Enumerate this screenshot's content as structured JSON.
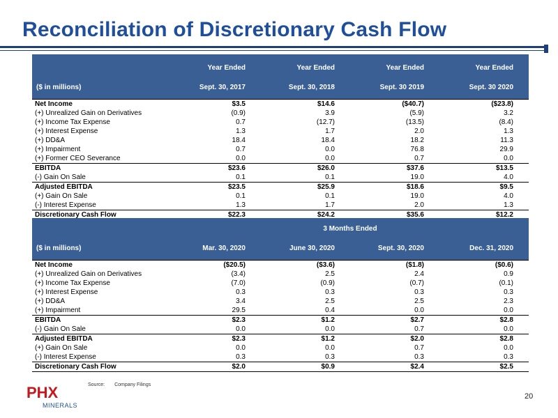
{
  "title": "Reconciliation of Discretionary Cash Flow",
  "table1": {
    "header_top": [
      "",
      "Year Ended",
      "Year Ended",
      "Year Ended",
      "Year Ended"
    ],
    "header_bottom": [
      "($ in millions)",
      "Sept. 30, 2017",
      "Sept. 30, 2018",
      "Sept. 30 2019",
      "Sept. 30 2020"
    ],
    "rows": [
      {
        "label": "Net Income",
        "values": [
          "$3.5",
          "$14.6",
          "($40.7)",
          "($23.8)"
        ],
        "bold": true
      },
      {
        "label": "(+) Unrealized Gain on Derivatives",
        "values": [
          "(0.9)",
          "3.9",
          "(5.9)",
          "3.2"
        ]
      },
      {
        "label": "(+) Income Tax Expense",
        "values": [
          "0.7",
          "(12.7)",
          "(13.5)",
          "(8.4)"
        ]
      },
      {
        "label": "(+) Interest Expense",
        "values": [
          "1.3",
          "1.7",
          "2.0",
          "1.3"
        ]
      },
      {
        "label": "(+) DD&A",
        "values": [
          "18.4",
          "18.4",
          "18.2",
          "11.3"
        ]
      },
      {
        "label": "(+) Impairment",
        "values": [
          "0.7",
          "0.0",
          "76.8",
          "29.9"
        ]
      },
      {
        "label": "(+) Former CEO Severance",
        "values": [
          "0.0",
          "0.0",
          "0.7",
          "0.0"
        ]
      },
      {
        "label": "EBITDA",
        "values": [
          "$23.6",
          "$26.0",
          "$37.6",
          "$13.5"
        ],
        "bold": true
      },
      {
        "label": "(-) Gain On Sale",
        "values": [
          "0.1",
          "0.1",
          "19.0",
          "4.0"
        ]
      },
      {
        "label": "Adjusted EBITDA",
        "values": [
          "$23.5",
          "$25.9",
          "$18.6",
          "$9.5"
        ],
        "bold": true
      },
      {
        "label": "(+) Gain On Sale",
        "values": [
          "0.1",
          "0.1",
          "19.0",
          "4.0"
        ]
      },
      {
        "label": "(-) Interest Expense",
        "values": [
          "1.3",
          "1.7",
          "2.0",
          "1.3"
        ]
      },
      {
        "label": "Discretionary Cash Flow",
        "values": [
          "$22.3",
          "$24.2",
          "$35.6",
          "$12.2"
        ],
        "bold": true
      }
    ]
  },
  "table2": {
    "header_top": "3 Months Ended",
    "header_bottom": [
      "($ in millions)",
      "Mar. 30, 2020",
      "June 30, 2020",
      "Sept. 30, 2020",
      "Dec. 31, 2020"
    ],
    "rows": [
      {
        "label": "Net Income",
        "values": [
          "($20.5)",
          "($3.6)",
          "($1.8)",
          "($0.6)"
        ],
        "bold": true
      },
      {
        "label": "(+) Unrealized Gain on Derivatives",
        "values": [
          "(3.4)",
          "2.5",
          "2.4",
          "0.9"
        ]
      },
      {
        "label": "(+) Income Tax Expense",
        "values": [
          "(7.0)",
          "(0.9)",
          "(0.7)",
          "(0.1)"
        ]
      },
      {
        "label": "(+) Interest Expense",
        "values": [
          "0.3",
          "0.3",
          "0.3",
          "0.3"
        ]
      },
      {
        "label": "(+) DD&A",
        "values": [
          "3.4",
          "2.5",
          "2.5",
          "2.3"
        ]
      },
      {
        "label": "(+) Impairment",
        "values": [
          "29.5",
          "0.4",
          "0.0",
          "0.0"
        ]
      },
      {
        "label": "EBITDA",
        "values": [
          "$2.3",
          "$1.2",
          "$2.7",
          "$2.8"
        ],
        "bold": true
      },
      {
        "label": "(-) Gain On Sale",
        "values": [
          "0.0",
          "0.0",
          "0.7",
          "0.0"
        ]
      },
      {
        "label": "Adjusted EBITDA",
        "values": [
          "$2.3",
          "$1.2",
          "$2.0",
          "$2.8"
        ],
        "bold": true
      },
      {
        "label": "(+) Gain On Sale",
        "values": [
          "0.0",
          "0.0",
          "0.7",
          "0.0"
        ]
      },
      {
        "label": "(-) Interest Expense",
        "values": [
          "0.3",
          "0.3",
          "0.3",
          "0.3"
        ]
      },
      {
        "label": "Discretionary Cash Flow",
        "values": [
          "$2.0",
          "$0.9",
          "$2.4",
          "$2.5"
        ],
        "bold": true
      }
    ]
  },
  "footer": {
    "source_label": "Source:",
    "source_text": "Company Filings",
    "page_number": "20",
    "logo_text": "PHX",
    "logo_subtext": "MINERALS"
  },
  "colors": {
    "title": "#1f4e9a",
    "header_bg": "#3a5f95",
    "logo_red": "#c8161d"
  }
}
